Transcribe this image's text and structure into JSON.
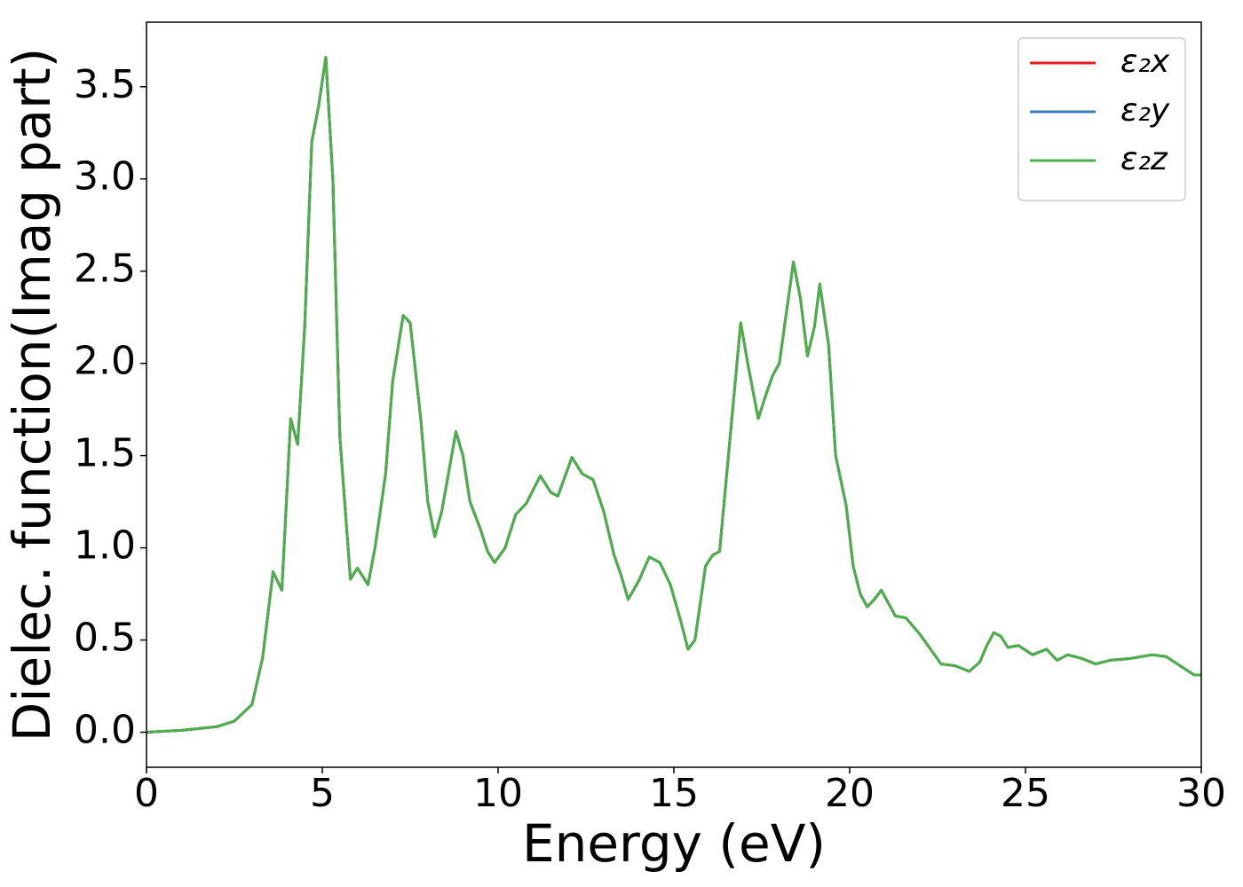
{
  "chart_data": {
    "type": "line",
    "xlabel": "Energy (eV)",
    "ylabel": "Dielec. function(Imag part)",
    "x": [
      0,
      1,
      2,
      2.5,
      3,
      3.3,
      3.6,
      3.85,
      4.1,
      4.3,
      4.5,
      4.7,
      4.9,
      5.1,
      5.3,
      5.5,
      5.8,
      6.0,
      6.3,
      6.5,
      6.8,
      7.0,
      7.3,
      7.5,
      7.8,
      8.0,
      8.2,
      8.4,
      8.8,
      9.0,
      9.2,
      9.5,
      9.7,
      9.9,
      10.2,
      10.5,
      10.8,
      11.2,
      11.5,
      11.7,
      12.1,
      12.4,
      12.7,
      13.0,
      13.3,
      13.5,
      13.7,
      14.0,
      14.3,
      14.6,
      14.9,
      15.2,
      15.4,
      15.6,
      15.9,
      16.1,
      16.3,
      16.6,
      16.9,
      17.1,
      17.4,
      17.6,
      17.8,
      18.0,
      18.4,
      18.6,
      18.8,
      19.0,
      19.15,
      19.4,
      19.6,
      19.9,
      20.1,
      20.3,
      20.5,
      20.7,
      20.9,
      21.1,
      21.3,
      21.6,
      22.0,
      22.3,
      22.6,
      23.0,
      23.4,
      23.7,
      23.9,
      24.1,
      24.3,
      24.5,
      24.8,
      25.2,
      25.6,
      25.9,
      26.2,
      26.6,
      27.0,
      27.4,
      28.0,
      28.6,
      29.0,
      29.4,
      29.8,
      30
    ],
    "series": [
      {
        "name": "ε₂x",
        "color": "#e41a1c",
        "values": [
          0,
          0.01,
          0.03,
          0.06,
          0.15,
          0.4,
          0.87,
          0.77,
          1.7,
          1.56,
          2.2,
          3.2,
          3.4,
          3.66,
          3.0,
          1.6,
          0.83,
          0.89,
          0.8,
          1.0,
          1.4,
          1.9,
          2.26,
          2.22,
          1.7,
          1.25,
          1.06,
          1.2,
          1.63,
          1.5,
          1.25,
          1.1,
          0.98,
          0.92,
          1.0,
          1.18,
          1.24,
          1.39,
          1.3,
          1.28,
          1.49,
          1.4,
          1.37,
          1.2,
          0.96,
          0.85,
          0.72,
          0.82,
          0.95,
          0.92,
          0.8,
          0.6,
          0.45,
          0.5,
          0.9,
          0.96,
          0.98,
          1.6,
          2.22,
          2.0,
          1.7,
          1.82,
          1.93,
          2.0,
          2.55,
          2.35,
          2.04,
          2.2,
          2.43,
          2.1,
          1.5,
          1.23,
          0.9,
          0.75,
          0.68,
          0.72,
          0.77,
          0.7,
          0.63,
          0.62,
          0.53,
          0.45,
          0.37,
          0.36,
          0.33,
          0.38,
          0.47,
          0.54,
          0.52,
          0.46,
          0.47,
          0.42,
          0.45,
          0.39,
          0.42,
          0.4,
          0.37,
          0.39,
          0.4,
          0.42,
          0.41,
          0.36,
          0.31,
          0.31
        ]
      },
      {
        "name": "ε₂y",
        "color": "#377eb8",
        "values": [
          0,
          0.01,
          0.03,
          0.06,
          0.15,
          0.4,
          0.87,
          0.77,
          1.7,
          1.56,
          2.2,
          3.2,
          3.4,
          3.66,
          3.0,
          1.6,
          0.83,
          0.89,
          0.8,
          1.0,
          1.4,
          1.9,
          2.26,
          2.22,
          1.7,
          1.25,
          1.06,
          1.2,
          1.63,
          1.5,
          1.25,
          1.1,
          0.98,
          0.92,
          1.0,
          1.18,
          1.24,
          1.39,
          1.3,
          1.28,
          1.49,
          1.4,
          1.37,
          1.2,
          0.96,
          0.85,
          0.72,
          0.82,
          0.95,
          0.92,
          0.8,
          0.6,
          0.45,
          0.5,
          0.9,
          0.96,
          0.98,
          1.6,
          2.22,
          2.0,
          1.7,
          1.82,
          1.93,
          2.0,
          2.55,
          2.35,
          2.04,
          2.2,
          2.43,
          2.1,
          1.5,
          1.23,
          0.9,
          0.75,
          0.68,
          0.72,
          0.77,
          0.7,
          0.63,
          0.62,
          0.53,
          0.45,
          0.37,
          0.36,
          0.33,
          0.38,
          0.47,
          0.54,
          0.52,
          0.46,
          0.47,
          0.42,
          0.45,
          0.39,
          0.42,
          0.4,
          0.37,
          0.39,
          0.4,
          0.42,
          0.41,
          0.36,
          0.31,
          0.31
        ]
      },
      {
        "name": "ε₂z",
        "color": "#4daf4a",
        "values": [
          0,
          0.01,
          0.03,
          0.06,
          0.15,
          0.4,
          0.87,
          0.77,
          1.7,
          1.56,
          2.2,
          3.2,
          3.4,
          3.66,
          3.0,
          1.6,
          0.83,
          0.89,
          0.8,
          1.0,
          1.4,
          1.9,
          2.26,
          2.22,
          1.7,
          1.25,
          1.06,
          1.2,
          1.63,
          1.5,
          1.25,
          1.1,
          0.98,
          0.92,
          1.0,
          1.18,
          1.24,
          1.39,
          1.3,
          1.28,
          1.49,
          1.4,
          1.37,
          1.2,
          0.96,
          0.85,
          0.72,
          0.82,
          0.95,
          0.92,
          0.8,
          0.6,
          0.45,
          0.5,
          0.9,
          0.96,
          0.98,
          1.6,
          2.22,
          2.0,
          1.7,
          1.82,
          1.93,
          2.0,
          2.55,
          2.35,
          2.04,
          2.2,
          2.43,
          2.1,
          1.5,
          1.23,
          0.9,
          0.75,
          0.68,
          0.72,
          0.77,
          0.7,
          0.63,
          0.62,
          0.53,
          0.45,
          0.37,
          0.36,
          0.33,
          0.38,
          0.47,
          0.54,
          0.52,
          0.46,
          0.47,
          0.42,
          0.45,
          0.39,
          0.42,
          0.4,
          0.37,
          0.39,
          0.4,
          0.42,
          0.41,
          0.36,
          0.31,
          0.31
        ]
      }
    ],
    "xlim": [
      0,
      30
    ],
    "xticks": [
      0,
      5,
      10,
      15,
      20,
      25,
      30
    ],
    "ylim": [
      -0.19,
      3.85
    ],
    "yticks": [
      {
        "value": 0,
        "label": "0.0"
      },
      0.5,
      {
        "value": 1,
        "label": "1.0"
      },
      1.5,
      {
        "value": 2,
        "label": "2.0"
      },
      2.5,
      {
        "value": 3,
        "label": "3.0"
      },
      3.5
    ],
    "legend": "upper right",
    "grid": false
  }
}
